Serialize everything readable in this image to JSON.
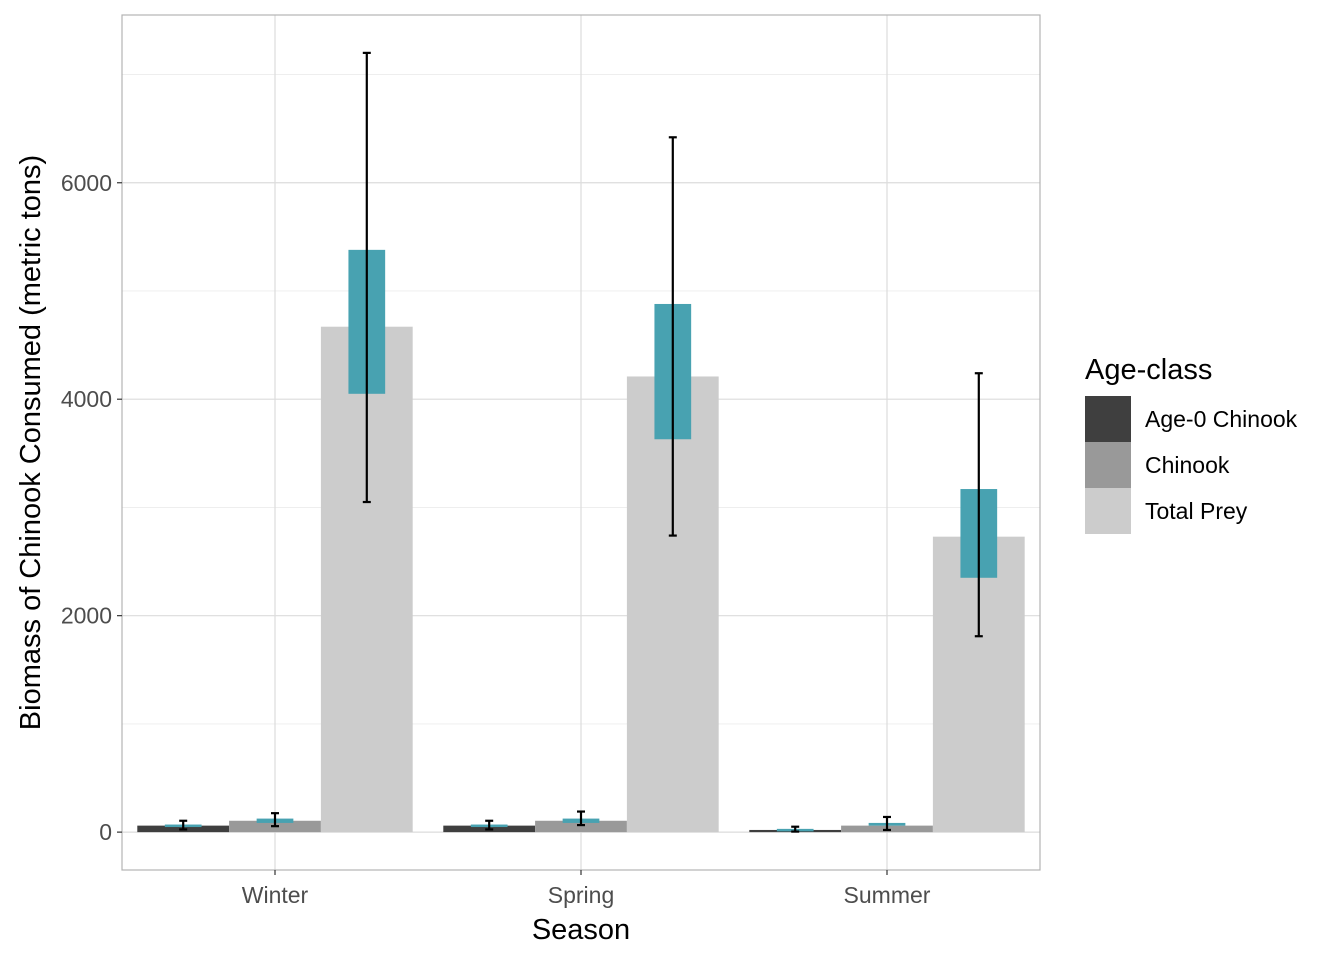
{
  "chart_data": {
    "type": "bar",
    "xlabel": "Season",
    "ylabel": "Biomass of Chinook Consumed (metric tons)",
    "categories": [
      "Winter",
      "Spring",
      "Summer"
    ],
    "ylim": [
      -350,
      7550
    ],
    "yticks": [
      0,
      2000,
      4000,
      6000
    ],
    "grid": true,
    "legend": {
      "title": "Age-class",
      "position": "right"
    },
    "series": [
      {
        "name": "Age-0 Chinook",
        "color": "#3f3f3f",
        "values": [
          60,
          60,
          20
        ],
        "box_low": [
          55,
          55,
          15
        ],
        "box_high": [
          70,
          70,
          30
        ],
        "err_low": [
          25,
          25,
          5
        ],
        "err_high": [
          105,
          105,
          50
        ]
      },
      {
        "name": "Chinook",
        "color": "#999999",
        "values": [
          105,
          105,
          60
        ],
        "box_low": [
          85,
          85,
          60
        ],
        "box_high": [
          125,
          125,
          85
        ],
        "err_low": [
          55,
          65,
          20
        ],
        "err_high": [
          175,
          190,
          140
        ]
      },
      {
        "name": "Total Prey",
        "color": "#cccccc",
        "values": [
          4670,
          4210,
          2730
        ],
        "box_low": [
          4050,
          3630,
          2350
        ],
        "box_high": [
          5380,
          4880,
          3170
        ],
        "err_low": [
          3050,
          2740,
          1810
        ],
        "err_high": [
          7200,
          6420,
          4240
        ]
      }
    ],
    "box_color": "#48a2b1"
  }
}
